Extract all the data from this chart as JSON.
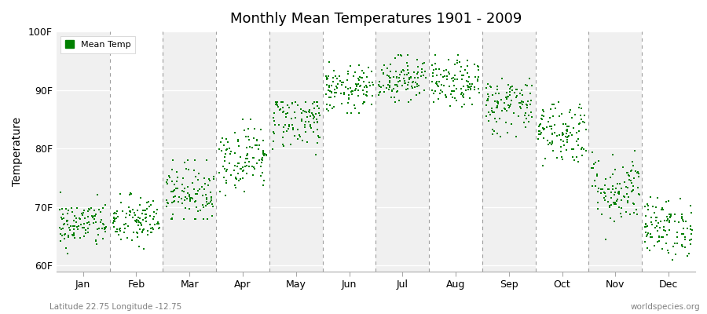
{
  "title": "Monthly Mean Temperatures 1901 - 2009",
  "ylabel": "Temperature",
  "xlabel_labels": [
    "Jan",
    "Feb",
    "Mar",
    "Apr",
    "May",
    "Jun",
    "Jul",
    "Aug",
    "Sep",
    "Oct",
    "Nov",
    "Dec"
  ],
  "ytick_labels": [
    "60F",
    "70F",
    "80F",
    "90F",
    "100F"
  ],
  "ytick_values": [
    60,
    70,
    80,
    90,
    100
  ],
  "ylim": [
    59,
    100
  ],
  "xlim": [
    0,
    12
  ],
  "dot_color": "#008000",
  "legend_label": "Mean Temp",
  "background_color": "#ffffff",
  "plot_bg_color_odd": "#f0f0f0",
  "plot_bg_color_even": "#ffffff",
  "dashed_line_color": "#888888",
  "subtitle_left": "Latitude 22.75 Longitude -12.75",
  "subtitle_right": "worldspecies.org",
  "n_years": 109,
  "seed": 42,
  "monthly_means": [
    67.0,
    67.5,
    72.5,
    78.5,
    85.0,
    90.0,
    92.0,
    91.0,
    87.5,
    83.0,
    73.0,
    66.5
  ],
  "monthly_stds": [
    2.0,
    2.2,
    2.5,
    2.8,
    2.5,
    2.0,
    2.0,
    2.0,
    2.5,
    2.8,
    3.0,
    2.5
  ],
  "monthly_mins": [
    62,
    62,
    68,
    72,
    79,
    86,
    88,
    87,
    82,
    77,
    64,
    61
  ],
  "monthly_maxs": [
    73,
    73,
    78,
    85,
    88,
    95,
    96,
    96,
    94,
    91,
    83,
    72
  ]
}
